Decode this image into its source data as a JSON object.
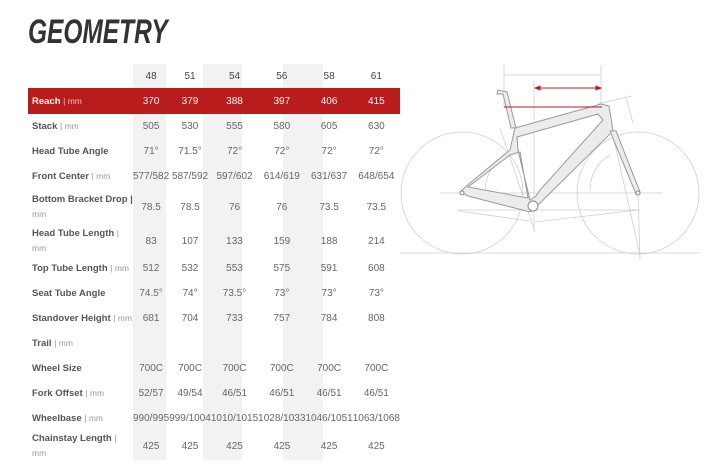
{
  "title": "GEOMETRY",
  "colors": {
    "accent": "#b81c1c",
    "shaded_column": "#f2f2f2"
  },
  "sizes": [
    "48",
    "51",
    "54",
    "56",
    "58",
    "61"
  ],
  "rows": [
    {
      "label": "Reach",
      "unit": "| mm",
      "values": [
        "370",
        "379",
        "388",
        "397",
        "406",
        "415"
      ],
      "highlighted": true
    },
    {
      "label": "Stack",
      "unit": "| mm",
      "values": [
        "505",
        "530",
        "555",
        "580",
        "605",
        "630"
      ]
    },
    {
      "label": "Head Tube Angle",
      "unit": "",
      "values": [
        "71°",
        "71.5°",
        "72°",
        "72°",
        "72°",
        "72°"
      ]
    },
    {
      "label": "Front Center",
      "unit": "| mm",
      "values": [
        "577/582",
        "587/592",
        "597/602",
        "614/619",
        "631/637",
        "648/654"
      ]
    },
    {
      "label": "Bottom Bracket Drop |",
      "unit": "mm",
      "values": [
        "78.5",
        "78.5",
        "76",
        "76",
        "73.5",
        "73.5"
      ]
    },
    {
      "label": "Head Tube Length",
      "unit": "| mm",
      "values": [
        "83",
        "107",
        "133",
        "159",
        "188",
        "214"
      ]
    },
    {
      "label": "Top Tube Length",
      "unit": "| mm",
      "values": [
        "512",
        "532",
        "553",
        "575",
        "591",
        "608"
      ]
    },
    {
      "label": "Seat Tube Angle",
      "unit": "",
      "values": [
        "74.5°",
        "74°",
        "73.5°",
        "73°",
        "73°",
        "73°"
      ]
    },
    {
      "label": "Standover Height",
      "unit": "| mm",
      "values": [
        "681",
        "704",
        "733",
        "757",
        "784",
        "808"
      ]
    },
    {
      "label": "Trail",
      "unit": "| mm",
      "values": [
        "",
        "",
        "",
        "",
        "",
        ""
      ]
    },
    {
      "label": "Wheel Size",
      "unit": "",
      "values": [
        "700C",
        "700C",
        "700C",
        "700C",
        "700C",
        "700C"
      ]
    },
    {
      "label": "Fork Offset",
      "unit": "| mm",
      "values": [
        "52/57",
        "49/54",
        "46/51",
        "46/51",
        "46/51",
        "46/51"
      ]
    },
    {
      "label": "Wheelbase",
      "unit": "| mm",
      "values": [
        "990/995",
        "999/1004",
        "1010/1015",
        "1028/1033",
        "1046/1051",
        "1063/1068"
      ]
    },
    {
      "label": "Chainstay Length",
      "unit": "| mm",
      "values": [
        "425",
        "425",
        "425",
        "425",
        "425",
        "425"
      ]
    }
  ]
}
